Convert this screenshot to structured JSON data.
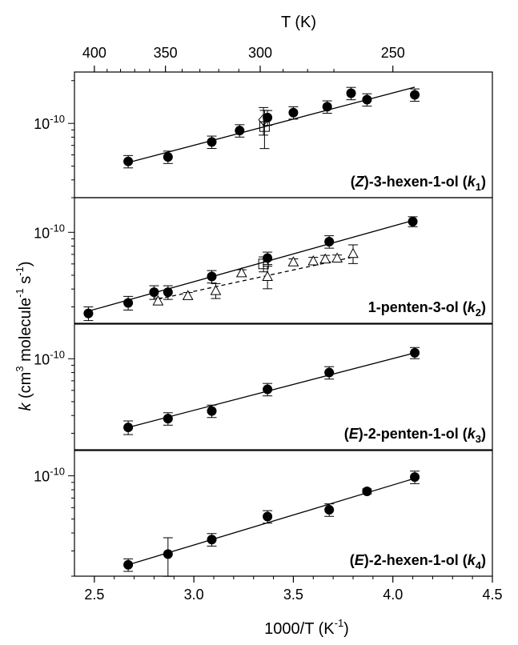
{
  "chart_data": {
    "type": "scatter",
    "x_axis": {
      "label": "1000/T (K",
      "label_sup": "-1",
      "label_close": ")",
      "range": [
        2.4,
        4.5
      ],
      "ticks": [
        2.5,
        3.0,
        3.5,
        4.0,
        4.5
      ],
      "tick_labels": [
        "2.5",
        "3.0",
        "3.5",
        "4.0",
        "4.5"
      ]
    },
    "top_axis": {
      "label": "T (K)",
      "ticks_K": [
        400,
        350,
        300,
        250
      ],
      "tick_labels": [
        "400",
        "350",
        "300",
        "250"
      ]
    },
    "y_axis": {
      "label_k": "k",
      "label_open": " (cm",
      "sup3": "3",
      "label_mid": " molecule",
      "sup_m1": "-1",
      "label_s": " s",
      "sup_s": "-1",
      "label_close": ")",
      "scale": "log",
      "tick_label_base": "10",
      "tick_label_exp": "-10"
    },
    "panels": [
      {
        "label_pre": "(",
        "label_it": "Z",
        "label_mid": ")-3-hexen-1-ol (",
        "label_k": "k",
        "label_sub": "1",
        "label_post": ")",
        "ylim": [
          3e-11,
          2.3e-10
        ],
        "series": [
          {
            "marker": "filled-circle",
            "x": [
              2.67,
              2.87,
              3.09,
              3.23,
              3.37,
              3.5,
              3.67,
              3.79,
              3.87,
              4.11
            ],
            "y": [
              5.4e-11,
              5.8e-11,
              7.4e-11,
              8.9e-11,
              1.1e-10,
              1.19e-10,
              1.31e-10,
              1.63e-10,
              1.47e-10,
              1.59e-10
            ],
            "err": [
              0.1,
              0.1,
              0.1,
              0.1,
              0.12,
              0.1,
              0.1,
              0.1,
              0.1,
              0.1
            ]
          },
          {
            "marker": "open-diamond",
            "x": [
              3.35
            ],
            "y": [
              1.06e-10
            ],
            "err": [
              0.22
            ]
          },
          {
            "marker": "open-square",
            "x": [
              3.355
            ],
            "y": [
              9.5e-11
            ],
            "err": [
              0.3
            ]
          }
        ],
        "fits": [
          {
            "style": "solid",
            "x": [
              2.67,
              4.11
            ],
            "y": [
              5.3e-11,
              1.8e-10
            ]
          }
        ]
      },
      {
        "label_pre": "",
        "label_it": "",
        "label_mid": "1-penten-3-ol (",
        "label_k": "k",
        "label_sub": "2",
        "label_post": ")",
        "ylim": [
          2.3e-11,
          1.75e-10
        ],
        "series": [
          {
            "marker": "filled-circle",
            "x": [
              2.47,
              2.67,
              2.8,
              2.87,
              3.09,
              3.37,
              3.68,
              4.1
            ],
            "y": [
              2.7e-11,
              3.2e-11,
              3.8e-11,
              3.8e-11,
              4.9e-11,
              6.6e-11,
              8.6e-11,
              1.19e-10
            ],
            "err": [
              0.11,
              0.11,
              0.11,
              0.11,
              0.1,
              0.1,
              0.1,
              0.08
            ]
          },
          {
            "marker": "open-triangle",
            "x": [
              2.82,
              2.97,
              3.11,
              3.24,
              3.37,
              3.5,
              3.6,
              3.66,
              3.72,
              3.8
            ],
            "y": [
              3.3e-11,
              3.6e-11,
              3.9e-11,
              5.2e-11,
              4.9e-11,
              6.2e-11,
              6.3e-11,
              6.5e-11,
              6.6e-11,
              7.1e-11
            ],
            "err": [
              0.05,
              0.05,
              0.12,
              0.05,
              0.18,
              0.05,
              0.06,
              0.06,
              0.05,
              0.15
            ]
          },
          {
            "marker": "open-square",
            "x": [
              3.35
            ],
            "y": [
              6e-11
            ],
            "err": [
              0.12
            ]
          }
        ],
        "fits": [
          {
            "style": "solid",
            "x": [
              2.47,
              4.11
            ],
            "y": [
              2.8e-11,
              1.22e-10
            ]
          },
          {
            "style": "dashed",
            "x": [
              2.82,
              3.8
            ],
            "y": [
              3.4e-11,
              6.7e-11
            ]
          }
        ]
      },
      {
        "label_pre": "(",
        "label_it": "E",
        "label_mid": ")-2-penten-1-ol (",
        "label_k": "k",
        "label_sub": "3",
        "label_post": ")",
        "ylim": [
          2.3e-11,
          1.75e-10
        ],
        "series": [
          {
            "marker": "filled-circle",
            "x": [
              2.67,
              2.87,
              3.09,
              3.37,
              3.68,
              4.11
            ],
            "y": [
              3.3e-11,
              3.8e-11,
              4.3e-11,
              6.1e-11,
              8e-11,
              1.1e-10
            ],
            "err": [
              0.11,
              0.1,
              0.1,
              0.1,
              0.1,
              0.09
            ]
          }
        ],
        "fits": [
          {
            "style": "solid",
            "x": [
              2.67,
              4.11
            ],
            "y": [
              3.3e-11,
              1.1e-10
            ]
          }
        ]
      },
      {
        "label_pre": "(",
        "label_it": "E",
        "label_mid": ")-2-hexen-1-ol (",
        "label_k": "k",
        "label_sub": "4",
        "label_post": ")",
        "ylim": [
          2e-11,
          1.5e-10
        ],
        "series": [
          {
            "marker": "filled-circle",
            "x": [
              2.67,
              2.87,
              3.09,
              3.37,
              3.68,
              3.87,
              4.11
            ],
            "y": [
              2.4e-11,
              2.85e-11,
              3.6e-11,
              5.2e-11,
              5.8e-11,
              7.8e-11,
              9.8e-11
            ],
            "err": [
              0.1,
              0.3,
              0.1,
              0.1,
              0.1,
              0.04,
              0.1
            ]
          }
        ],
        "fits": [
          {
            "style": "solid",
            "x": [
              2.67,
              4.11
            ],
            "y": [
              2.4e-11,
              9.6e-11
            ]
          }
        ]
      }
    ]
  }
}
